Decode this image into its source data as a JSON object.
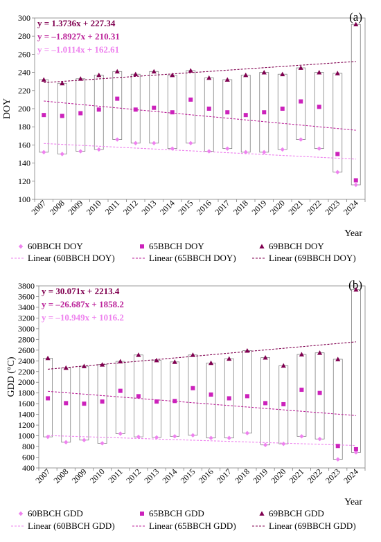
{
  "chart_data": [
    {
      "panel_label": "(a)",
      "type": "scatter",
      "xlabel": "Year",
      "ylabel": "DOY",
      "ylim": [
        100,
        300
      ],
      "yticks": [
        100,
        120,
        140,
        160,
        180,
        200,
        220,
        240,
        260,
        280,
        300
      ],
      "categories": [
        "2007",
        "2008",
        "2009",
        "2010",
        "2011",
        "2012",
        "2013",
        "2014",
        "2015",
        "2016",
        "2017",
        "2018",
        "2019",
        "2020",
        "2021",
        "2022",
        "2023",
        "2024"
      ],
      "series": [
        {
          "name": "60BBCH DOY",
          "marker": "diamond",
          "color": "#ee82ee",
          "values": [
            152,
            150,
            153,
            155,
            166,
            162,
            162,
            156,
            162,
            153,
            156,
            152,
            152,
            155,
            166,
            156,
            130,
            116
          ]
        },
        {
          "name": "65BBCH DOY",
          "marker": "square",
          "color": "#cc22bb",
          "values": [
            193,
            192,
            195,
            199,
            211,
            199,
            201,
            196,
            210,
            200,
            196,
            193,
            196,
            200,
            208,
            202,
            150,
            121
          ]
        },
        {
          "name": "69BBCH DOY",
          "marker": "triangle",
          "color": "#800050",
          "values": [
            232,
            228,
            233,
            237,
            241,
            238,
            241,
            237,
            242,
            234,
            232,
            237,
            240,
            238,
            245,
            240,
            239,
            293
          ]
        }
      ],
      "trendlines": [
        {
          "name": "Linear (60BBCH DOY)",
          "color": "#ee82ee",
          "slope": -1.0114,
          "intercept": 162.61
        },
        {
          "name": "Linear (65BBCH DOY)",
          "color": "#bb2299",
          "slope": -1.8927,
          "intercept": 210.31
        },
        {
          "name": "Linear (69BBCH DOY)",
          "color": "#800050",
          "slope": 1.3736,
          "intercept": 227.34
        }
      ],
      "equations": [
        {
          "text": "y =   1.3736x + 227.34",
          "color": "#800050"
        },
        {
          "text": "y = –1.8927x + 210.31",
          "color": "#bb2299"
        },
        {
          "text": "y = –1.0114x + 162.61",
          "color": "#ee82ee"
        }
      ],
      "legend_position": "bottom",
      "grid": false
    },
    {
      "panel_label": "(b)",
      "type": "scatter",
      "xlabel": "Year",
      "ylabel": "GDD (°C)",
      "ylim": [
        400,
        3800
      ],
      "yticks": [
        400,
        600,
        800,
        1000,
        1200,
        1400,
        1600,
        1800,
        2000,
        2200,
        2400,
        2600,
        2800,
        3000,
        3200,
        3400,
        3600,
        3800
      ],
      "categories": [
        "2007",
        "2008",
        "2009",
        "2010",
        "2011",
        "2012",
        "2013",
        "2014",
        "2015",
        "2016",
        "2017",
        "2018",
        "2019",
        "2020",
        "2021",
        "2022",
        "2023",
        "2024"
      ],
      "series": [
        {
          "name": "60BBCH GDD",
          "marker": "diamond",
          "color": "#ee82ee",
          "values": [
            980,
            880,
            920,
            860,
            1040,
            980,
            970,
            990,
            1010,
            960,
            960,
            1050,
            830,
            850,
            990,
            940,
            560,
            690
          ]
        },
        {
          "name": "65BBCH GDD",
          "marker": "square",
          "color": "#cc22bb",
          "values": [
            1700,
            1610,
            1600,
            1640,
            1840,
            1740,
            1640,
            1650,
            1890,
            1770,
            1700,
            1740,
            1610,
            1590,
            1860,
            1800,
            810,
            750
          ]
        },
        {
          "name": "69BBCH GDD",
          "marker": "triangle",
          "color": "#800050",
          "values": [
            2450,
            2270,
            2300,
            2330,
            2390,
            2510,
            2410,
            2380,
            2510,
            2360,
            2440,
            2590,
            2460,
            2310,
            2520,
            2550,
            2430,
            3730
          ]
        }
      ],
      "trendlines": [
        {
          "name": "Linear (60BBCH GDD)",
          "color": "#ee82ee",
          "slope": -10.949,
          "intercept": 1016.2
        },
        {
          "name": "Linear (65BBCH GDD)",
          "color": "#bb2299",
          "slope": -26.687,
          "intercept": 1858.2
        },
        {
          "name": "Linear (69BBCH GDD)",
          "color": "#800050",
          "slope": 30.071,
          "intercept": 2213.4
        }
      ],
      "equations": [
        {
          "text": "y =   30.071x + 2213.4",
          "color": "#800050"
        },
        {
          "text": "y = –26.687x + 1858.2",
          "color": "#bb2299"
        },
        {
          "text": "y = –10.949x + 1016.2",
          "color": "#ee82ee"
        }
      ],
      "legend_position": "bottom",
      "grid": false
    }
  ]
}
